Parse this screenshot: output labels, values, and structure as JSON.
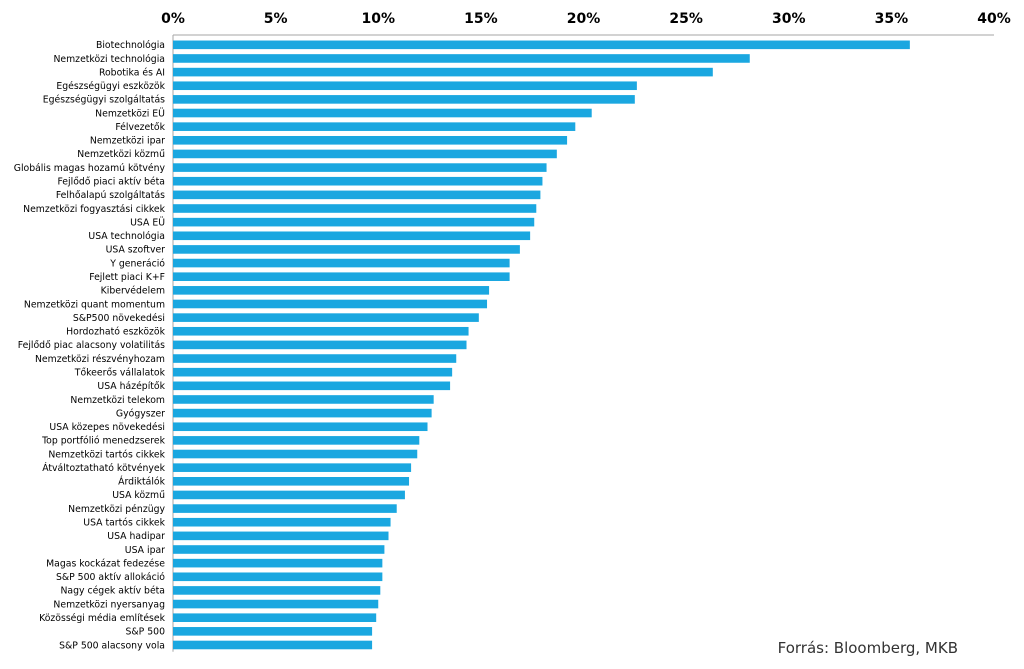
{
  "chart_data": {
    "type": "bar",
    "orientation": "horizontal",
    "xlim": [
      0,
      40
    ],
    "x_ticks": [
      0,
      5,
      10,
      15,
      20,
      25,
      30,
      35,
      40
    ],
    "x_tick_labels": [
      "0%",
      "5%",
      "10%",
      "15%",
      "20%",
      "25%",
      "30%",
      "35%",
      "40%"
    ],
    "axis_position": "top",
    "grid": false,
    "bar_color": "#1aa7e0",
    "categories": [
      "Biotechnológia",
      "Nemzetközi technológia",
      "Robotika és AI",
      "Egészségügyi eszközök",
      "Egészségügyi szolgáltatás",
      "Nemzetközi EÜ",
      "Félvezetők",
      "Nemzetközi ipar",
      "Nemzetközi közmű",
      "Globális magas hozamú kötvény",
      "Fejlődő piaci aktív béta",
      "Felhőalapú szolgáltatás",
      "Nemzetközi fogyasztási cikkek",
      "USA EÜ",
      "USA technológia",
      "USA szoftver",
      "Y generáció",
      "Fejlett piaci K+F",
      "Kibervédelem",
      "Nemzetközi quant momentum",
      "S&P500 növekedési",
      "Hordozható eszközök",
      "Fejlődő piac alacsony volatilitás",
      "Nemzetközi részvényhozam",
      "Tőkeerős vállalatok",
      "USA házépítők",
      "Nemzetközi telekom",
      "Gyógyszer",
      "USA közepes növekedési",
      "Top portfólió menedzserek",
      "Nemzetközi tartós cikkek",
      "Átváltoztatható kötvények",
      "Árdiktálók",
      "USA közmű",
      "Nemzetközi pénzügy",
      "USA tartós cikkek",
      "USA hadipar",
      "USA ipar",
      "Magas kockázat fedezése",
      "S&P 500 aktív allokáció",
      "Nagy cégek aktív béta",
      "Nemzetközi nyersanyag",
      "Közösségi média említések",
      "S&P 500",
      "S&P 500 alacsony vola"
    ],
    "values": [
      35.9,
      28.1,
      26.3,
      22.6,
      22.5,
      20.4,
      19.6,
      19.2,
      18.7,
      18.2,
      18.0,
      17.9,
      17.7,
      17.6,
      17.4,
      16.9,
      16.4,
      16.4,
      15.4,
      15.3,
      14.9,
      14.4,
      14.3,
      13.8,
      13.6,
      13.5,
      12.7,
      12.6,
      12.4,
      12.0,
      11.9,
      11.6,
      11.5,
      11.3,
      10.9,
      10.6,
      10.5,
      10.3,
      10.2,
      10.2,
      10.1,
      10.0,
      9.9,
      9.7,
      9.7
    ]
  },
  "source_text": "Forrás: Bloomberg, MKB"
}
